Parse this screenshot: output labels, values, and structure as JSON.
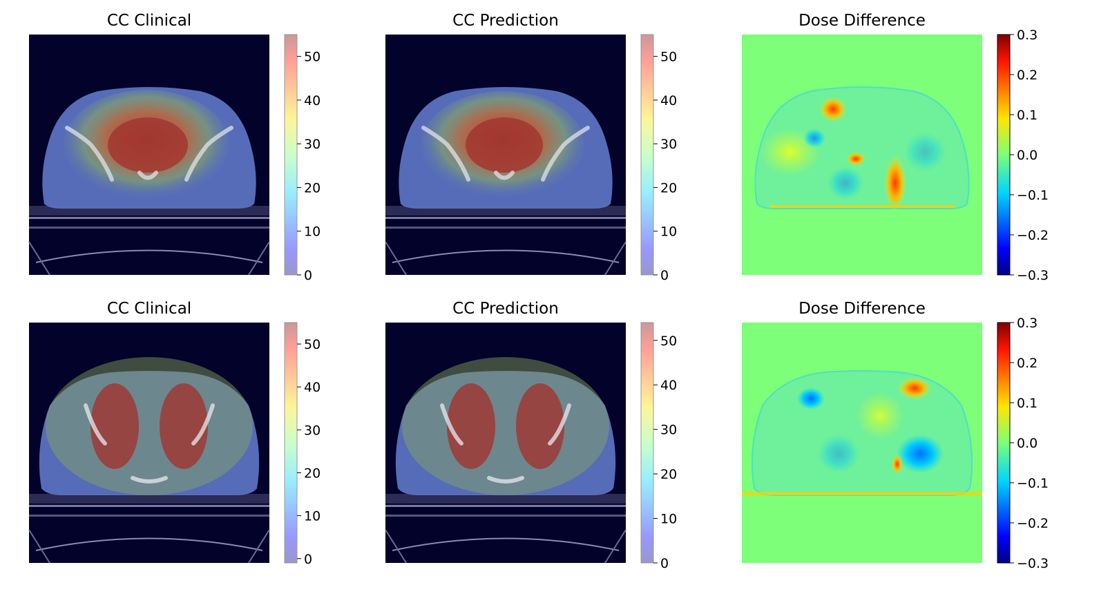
{
  "panels": [
    {
      "title": "CC Clinical",
      "kind": "dose",
      "colorbar": {
        "ticks": [
          "0",
          "10",
          "20",
          "30",
          "40",
          "50"
        ],
        "min": 0,
        "max": 55,
        "alpha": 0.4
      }
    },
    {
      "title": "CC Prediction",
      "kind": "dose",
      "colorbar": {
        "ticks": [
          "0",
          "10",
          "20",
          "30",
          "40",
          "50"
        ],
        "min": 0,
        "max": 55,
        "alpha": 0.4
      }
    },
    {
      "title": "Dose Difference",
      "kind": "diff",
      "colorbar": {
        "ticks": [
          "−0.3",
          "−0.2",
          "−0.1",
          "0.0",
          "0.1",
          "0.2",
          "0.3"
        ],
        "min": -0.3,
        "max": 0.3,
        "alpha": 1
      }
    },
    {
      "title": "CC Clinical",
      "kind": "dose",
      "colorbar": {
        "ticks": [
          "0",
          "10",
          "20",
          "30",
          "40",
          "50"
        ],
        "min": -1,
        "max": 55,
        "alpha": 0.4
      }
    },
    {
      "title": "CC Prediction",
      "kind": "dose",
      "colorbar": {
        "ticks": [
          "0",
          "10",
          "20",
          "30",
          "40",
          "50"
        ],
        "min": 0,
        "max": 54,
        "alpha": 0.4
      }
    },
    {
      "title": "Dose Difference",
      "kind": "diff",
      "colorbar": {
        "ticks": [
          "−0.3",
          "−0.2",
          "−0.1",
          "0.0",
          "0.1",
          "0.2",
          "0.3"
        ],
        "min": -0.3,
        "max": 0.3,
        "alpha": 1
      }
    }
  ],
  "colors": {
    "ct_background": "#03022a",
    "diff_zero": "#7dff7a"
  }
}
